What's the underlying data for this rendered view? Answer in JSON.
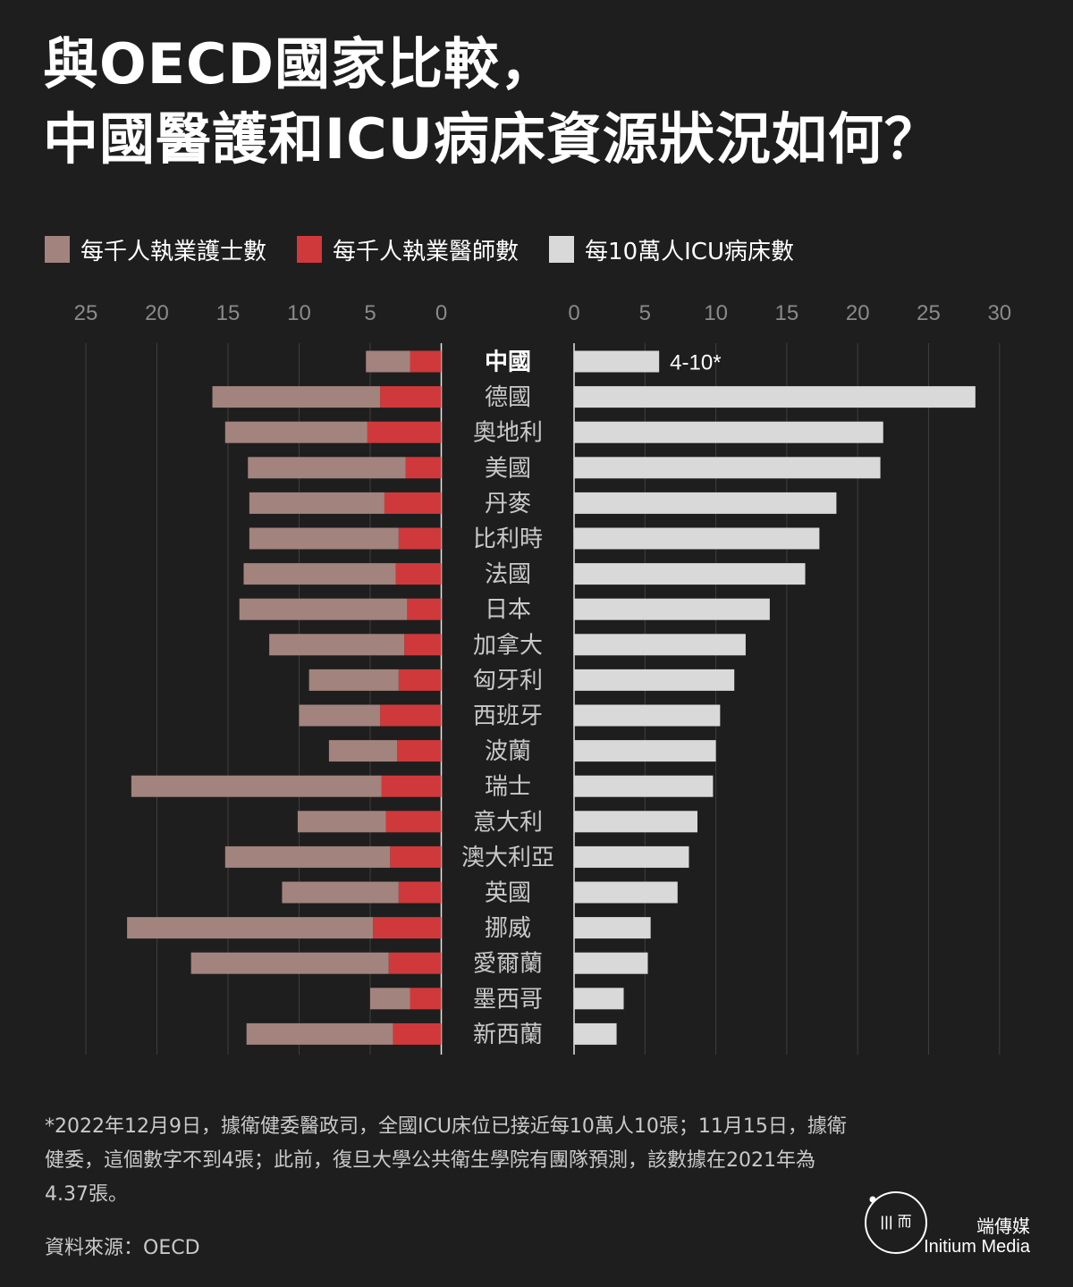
{
  "title_lines": [
    "與OECD國家比較，",
    "中國醫護和ICU病床資源狀況如何？"
  ],
  "legend": [
    {
      "label": "每千人執業護士數",
      "color": "#a3837d"
    },
    {
      "label": "每千人執業醫師數",
      "color": "#d0393b"
    },
    {
      "label": "每10萬人ICU病床數",
      "color": "#d9d9d9"
    }
  ],
  "chart_data": {
    "type": "bar",
    "orientation": "horizontal",
    "left_panel": {
      "stacked": true,
      "direction": "reversed",
      "xlim": [
        0,
        25
      ],
      "ticks": [
        25,
        20,
        15,
        10,
        5,
        0
      ],
      "series": [
        {
          "name": "每千人執業醫師數",
          "color": "#d0393b",
          "values": [
            2.2,
            4.3,
            5.2,
            2.5,
            4.0,
            3.0,
            3.2,
            2.4,
            2.6,
            3.0,
            4.3,
            3.1,
            4.2,
            3.9,
            3.6,
            3.0,
            4.8,
            3.7,
            2.2,
            3.4
          ]
        },
        {
          "name": "每千人執業護士數",
          "color": "#a3837d",
          "values": [
            3.1,
            11.8,
            10.0,
            11.1,
            9.5,
            10.5,
            10.7,
            11.8,
            9.5,
            6.3,
            5.7,
            4.8,
            17.6,
            6.2,
            11.6,
            8.2,
            17.3,
            13.9,
            2.8,
            10.3
          ]
        }
      ]
    },
    "right_panel": {
      "xlim": [
        0,
        30
      ],
      "ticks": [
        0,
        5,
        10,
        15,
        20,
        25,
        30
      ],
      "series": [
        {
          "name": "每10萬人ICU病床數",
          "color": "#d9d9d9",
          "values": [
            6.0,
            28.3,
            21.8,
            21.6,
            18.5,
            17.3,
            16.3,
            13.8,
            12.1,
            11.3,
            10.3,
            10.0,
            9.8,
            8.7,
            8.1,
            7.3,
            5.4,
            5.2,
            3.5,
            3.0
          ]
        }
      ],
      "annotation": {
        "index": 0,
        "text": "4-10*"
      }
    },
    "categories": [
      "中國",
      "德國",
      "奧地利",
      "美國",
      "丹麥",
      "比利時",
      "法國",
      "日本",
      "加拿大",
      "匈牙利",
      "西班牙",
      "波蘭",
      "瑞士",
      "意大利",
      "澳大利亞",
      "英國",
      "挪威",
      "愛爾蘭",
      "墨西哥",
      "新西蘭"
    ],
    "highlight_category": "中國"
  },
  "footnote": "*2022年12月9日，據衛健委醫政司，全國ICU床位已接近每10萬人10張；11月15日，據衛健委，這個數字不到4張；此前，復旦大學公共衛生學院有團隊預測，該數據在2021年為4.37張。",
  "source": "資料來源：OECD",
  "brand": {
    "zh": "端傳媒",
    "en": "Initium Media",
    "logo_text": "ǀǀǀ 而"
  }
}
